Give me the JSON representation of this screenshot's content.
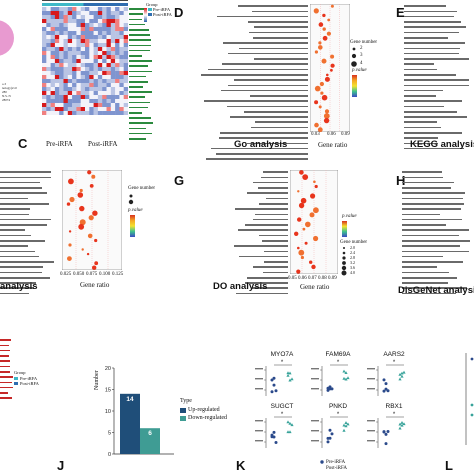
{
  "panels": {
    "C": {
      "letter": "C",
      "group_labels": [
        "Pre-iRFA",
        "Post-iRFA"
      ],
      "legend_title": "Group",
      "legend_items": [
        "Pre-iRFA",
        "Post-iRFA"
      ]
    },
    "D": {
      "letter": "D",
      "caption": "Go analysis",
      "xlabel": "Gene ratio",
      "xticks": [
        "0.03",
        "0.06",
        "0.09"
      ],
      "legend_title": "Gene number",
      "legend_sizes": [
        "2",
        "3",
        "4"
      ],
      "pvalue_title": "p.value"
    },
    "E": {
      "letter": "E",
      "caption": "KEGG analysis"
    },
    "F": {
      "caption": "analysis",
      "xlabel": "Gene ratio",
      "xticks": [
        "0.025",
        "0.050",
        "0.075",
        "0.100",
        "0.125"
      ],
      "legend_title": "Gene number",
      "pvalue_title": "p.value"
    },
    "G": {
      "letter": "G",
      "caption": "DO analysis",
      "xlabel": "Gene ratio",
      "xticks": [
        "0.05",
        "0.06",
        "0.07",
        "0.08",
        "0.09"
      ],
      "pvalue_title": "p.value",
      "legend_title": "Gene number",
      "legend_sizes": [
        "2.0",
        "2.4",
        "2.8",
        "3.2",
        "3.6",
        "4.0"
      ]
    },
    "H": {
      "letter": "H",
      "caption": "DisGeNet analysis"
    },
    "I": {
      "legend_title": "Group",
      "legend_items": [
        "Pre-iRFA",
        "Post-iRFA"
      ]
    },
    "J": {
      "letter": "J",
      "ylabel": "Number",
      "legend_title": "Type",
      "legend_items": [
        "Up-regulated",
        "Down-regulated"
      ],
      "chart_data": {
        "type": "bar",
        "categories": [
          "Up-regulated",
          "Down-regulated"
        ],
        "values": [
          14,
          6
        ],
        "ylim": [
          0,
          20
        ],
        "yticks": [
          "0",
          "5",
          "10",
          "15",
          "20"
        ]
      }
    },
    "K": {
      "letter": "K",
      "genes": [
        "MYO7A",
        "FAM69A",
        "AARS2",
        "SUGCT",
        "PNKD",
        "RBX1"
      ],
      "legend_items": [
        "Pre-iRFA",
        "Post-iRFA"
      ],
      "signif": "*"
    },
    "L": {
      "letter": "L"
    }
  },
  "colors": {
    "up": "#1f4e79",
    "down": "#3f9c94",
    "pre": "#2b4a8b",
    "post": "#38a39a",
    "heat_red": "#d7191c",
    "heat_blue": "#2c5fa8"
  }
}
